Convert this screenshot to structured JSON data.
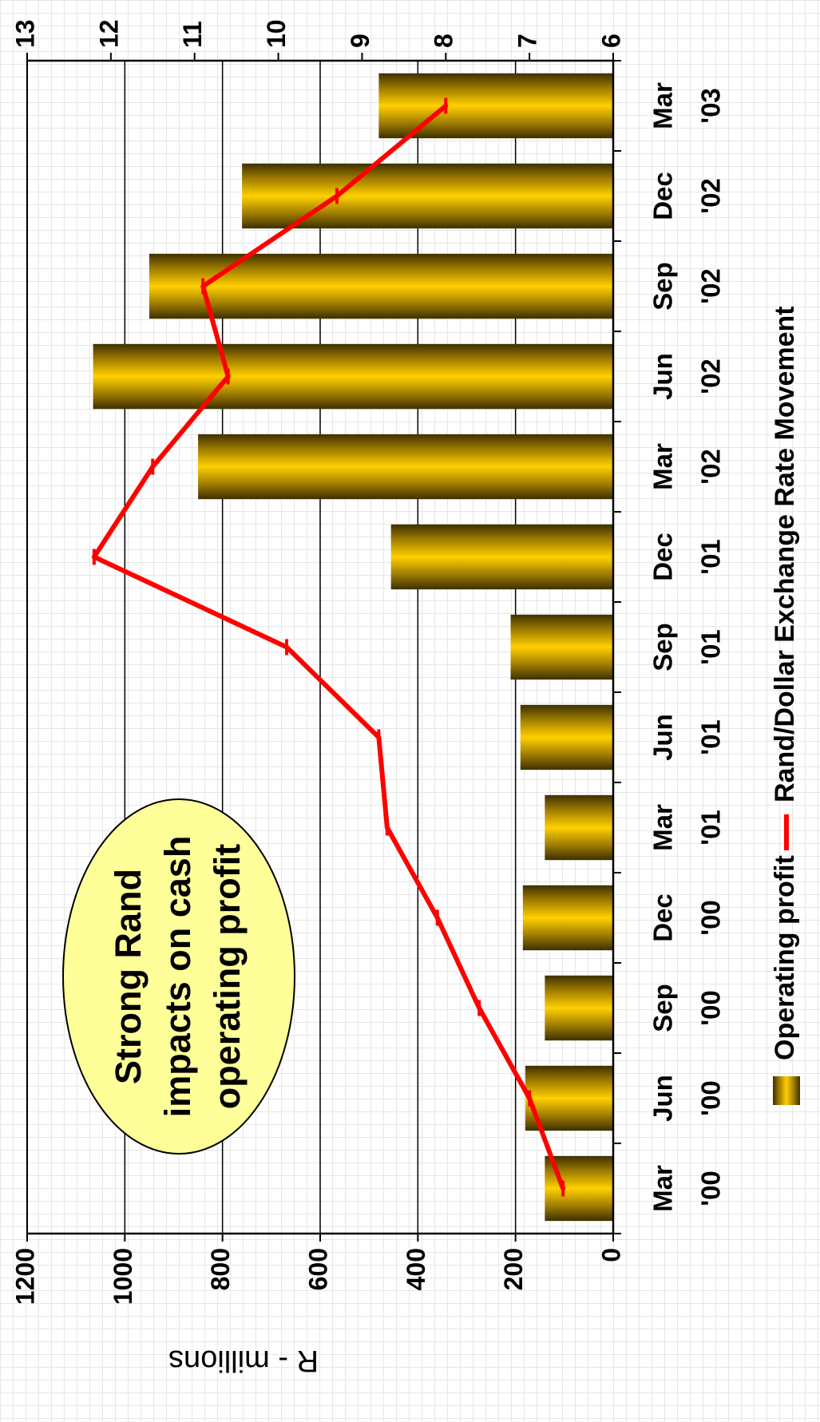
{
  "chart_data": {
    "type": "bar",
    "orientation": "rotated-90-clockwise",
    "categories": [
      [
        "Mar",
        "'00"
      ],
      [
        "Jun",
        "'00"
      ],
      [
        "Sep",
        "'00"
      ],
      [
        "Dec",
        "'00"
      ],
      [
        "Mar",
        "'01"
      ],
      [
        "Jun",
        "'01"
      ],
      [
        "Sep",
        "'01"
      ],
      [
        "Dec",
        "'01"
      ],
      [
        "Mar",
        "'02"
      ],
      [
        "Jun",
        "'02"
      ],
      [
        "Sep",
        "'02"
      ],
      [
        "Dec",
        "'02"
      ],
      [
        "Mar",
        "'03"
      ]
    ],
    "series": [
      {
        "name": "Operating profit",
        "type": "bar",
        "axis": "primary",
        "color": "#e6b800",
        "values": [
          140,
          180,
          140,
          185,
          140,
          190,
          210,
          455,
          850,
          1065,
          950,
          760,
          480
        ]
      },
      {
        "name": "Rand/Dollar Exchange Rate Movement",
        "type": "line",
        "axis": "secondary",
        "color": "#ff0000",
        "values": [
          6.6,
          7.0,
          7.6,
          8.1,
          8.7,
          8.8,
          9.9,
          12.2,
          11.5,
          10.6,
          10.9,
          9.3,
          8.0
        ]
      }
    ],
    "ylabel": "R - millions",
    "ylim": [
      0,
      1200
    ],
    "yticks": [
      "0",
      "200",
      "400",
      "600",
      "800",
      "1000",
      "1200"
    ],
    "y2lim": [
      6,
      13
    ],
    "y2ticks": [
      "6",
      "7",
      "8",
      "9",
      "10",
      "11",
      "12",
      "13"
    ],
    "grid": true,
    "legend": {
      "position": "bottom",
      "items": [
        "Operating profit",
        "Rand/Dollar Exchange Rate Movement"
      ]
    },
    "annotation": {
      "lines": [
        "Strong Rand",
        "impacts on cash",
        "operating profit"
      ],
      "fill": "#ffff99"
    }
  }
}
